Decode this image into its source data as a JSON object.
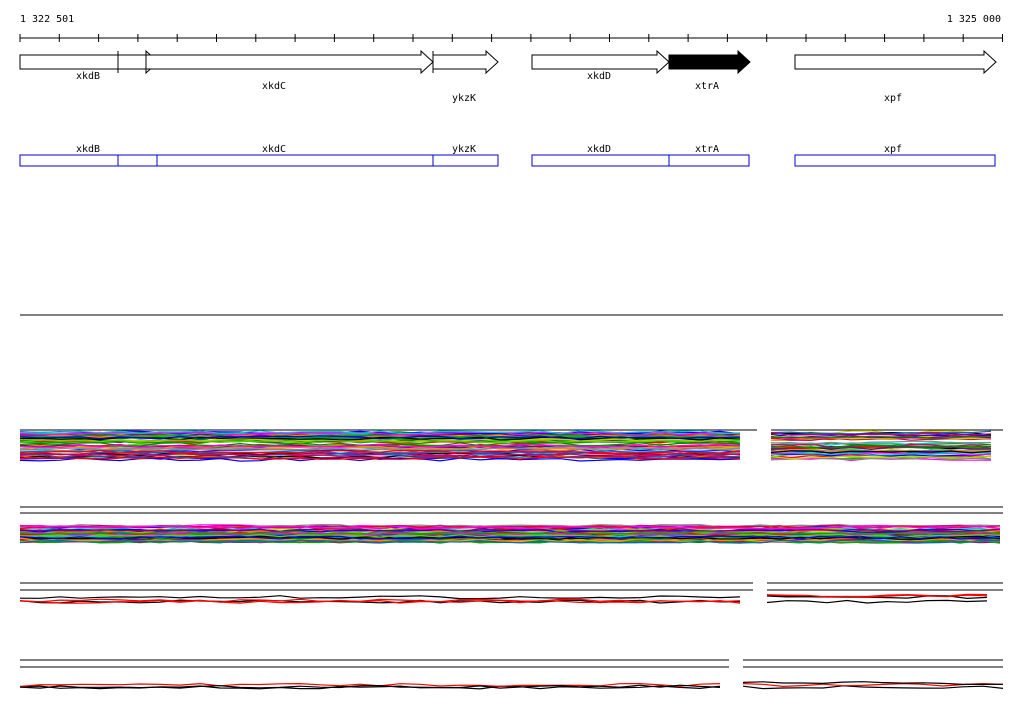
{
  "ruler": {
    "start": "1 322 501",
    "end": "1 325 000"
  },
  "gene_track": [
    "xkdB",
    "xkdC",
    "ykzK",
    "xkdD",
    "xtrA",
    "xpf"
  ],
  "annotation_track": [
    "xkdB",
    "xkdC",
    "ykzK",
    "xkdD",
    "xtrA",
    "xpf"
  ]
}
